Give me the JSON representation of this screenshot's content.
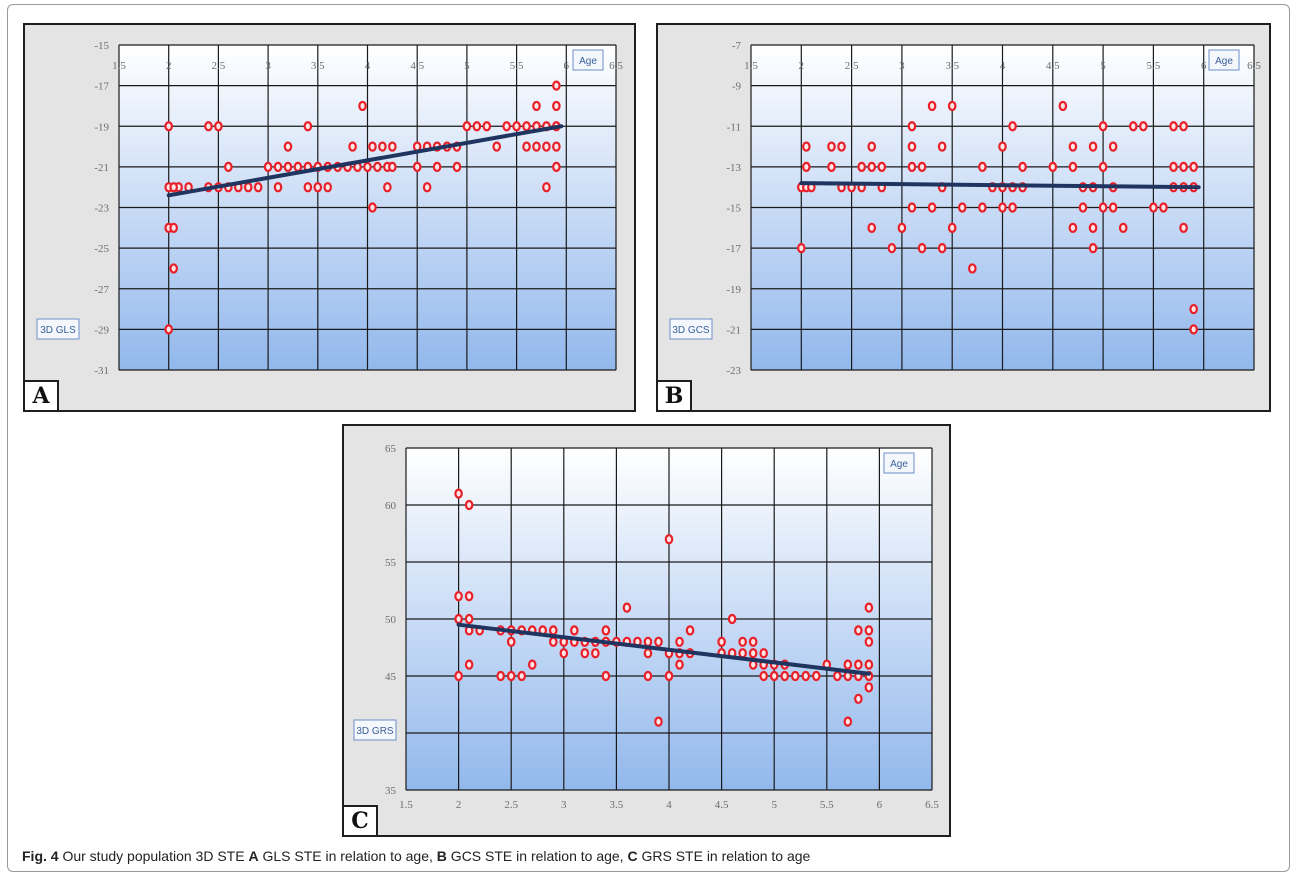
{
  "colors": {
    "plot_top": "#ffffff",
    "plot_bottom": "#92b8ec",
    "grid": "#1a1a1a",
    "point": "#e8202a",
    "trend": "#1f3560",
    "label_box_border": "#6c8fc8",
    "label_box_text": "#3a5f9a"
  },
  "caption": {
    "fig_label": "Fig. 4",
    "text_1": "Our study population 3D STE ",
    "label_a": "A",
    "text_2": " GLS STE in relation to age, ",
    "label_b": "B",
    "text_3": " GCS STE in relation to age, ",
    "label_c": "C",
    "text_4": " GRS STE in relation to age"
  },
  "chart_data": [
    {
      "id": "A",
      "type": "scatter",
      "panel_label": "A",
      "xlabel": "Age",
      "ylabel": "3D GLS",
      "xlim": [
        1.5,
        6.5
      ],
      "ylim": [
        -31,
        -15
      ],
      "x_ticks": [
        "1.5",
        "2",
        "2.5",
        "3",
        "3.5",
        "4",
        "4.5",
        "5",
        "5.5",
        "6",
        "6.5"
      ],
      "y_ticks": [
        "-15",
        "-17",
        "-19",
        "-21",
        "-23",
        "-25",
        "-27",
        "-29",
        "-31"
      ],
      "x_axis_position": "top",
      "grid": true,
      "trendline": {
        "x": [
          2.0,
          5.95
        ],
        "y": [
          -22.4,
          -19.0
        ]
      },
      "points": [
        [
          2,
          -19
        ],
        [
          2,
          -22
        ],
        [
          2,
          -24
        ],
        [
          2,
          -29
        ],
        [
          2.05,
          -26
        ],
        [
          2.05,
          -24
        ],
        [
          2.1,
          -22
        ],
        [
          2.05,
          -22
        ],
        [
          2.2,
          -22
        ],
        [
          2.4,
          -19
        ],
        [
          2.5,
          -19
        ],
        [
          2.4,
          -22
        ],
        [
          2.5,
          -22
        ],
        [
          2.6,
          -22
        ],
        [
          2.6,
          -21
        ],
        [
          2.7,
          -22
        ],
        [
          2.8,
          -22
        ],
        [
          2.9,
          -22
        ],
        [
          3.0,
          -21
        ],
        [
          3.1,
          -21
        ],
        [
          3.1,
          -22
        ],
        [
          3.2,
          -21
        ],
        [
          3.2,
          -20
        ],
        [
          3.3,
          -21
        ],
        [
          3.4,
          -21
        ],
        [
          3.4,
          -19
        ],
        [
          3.4,
          -22
        ],
        [
          3.5,
          -21
        ],
        [
          3.5,
          -22
        ],
        [
          3.6,
          -21
        ],
        [
          3.6,
          -22
        ],
        [
          3.7,
          -21
        ],
        [
          3.8,
          -21
        ],
        [
          3.85,
          -20
        ],
        [
          3.9,
          -21
        ],
        [
          3.95,
          -18
        ],
        [
          4.0,
          -21
        ],
        [
          4.05,
          -20
        ],
        [
          4.05,
          -23
        ],
        [
          4.1,
          -21
        ],
        [
          4.15,
          -20
        ],
        [
          4.2,
          -21
        ],
        [
          4.2,
          -22
        ],
        [
          4.25,
          -20
        ],
        [
          4.25,
          -21
        ],
        [
          4.5,
          -20
        ],
        [
          4.5,
          -21
        ],
        [
          4.6,
          -20
        ],
        [
          4.6,
          -22
        ],
        [
          4.7,
          -20
        ],
        [
          4.7,
          -21
        ],
        [
          4.8,
          -20
        ],
        [
          4.9,
          -20
        ],
        [
          4.9,
          -21
        ],
        [
          5.0,
          -19
        ],
        [
          5.1,
          -19
        ],
        [
          5.2,
          -19
        ],
        [
          5.3,
          -20
        ],
        [
          5.4,
          -19
        ],
        [
          5.5,
          -19
        ],
        [
          5.6,
          -19
        ],
        [
          5.6,
          -20
        ],
        [
          5.7,
          -19
        ],
        [
          5.7,
          -18
        ],
        [
          5.7,
          -20
        ],
        [
          5.8,
          -19
        ],
        [
          5.8,
          -20
        ],
        [
          5.8,
          -22
        ],
        [
          5.9,
          -19
        ],
        [
          5.9,
          -20
        ],
        [
          5.9,
          -21
        ],
        [
          5.9,
          -18
        ],
        [
          5.9,
          -17
        ]
      ]
    },
    {
      "id": "B",
      "type": "scatter",
      "panel_label": "B",
      "xlabel": "Age",
      "ylabel": "3D GCS",
      "xlim": [
        1.5,
        6.5
      ],
      "ylim": [
        -23,
        -7
      ],
      "x_ticks": [
        "1.5",
        "2",
        "2.5",
        "3",
        "3.5",
        "4",
        "4.5",
        "5",
        "5.5",
        "6",
        "6.5"
      ],
      "y_ticks": [
        "-7",
        "-9",
        "-11",
        "-13",
        "-15",
        "-17",
        "-19",
        "-21",
        "-23"
      ],
      "x_axis_position": "top",
      "grid": true,
      "trendline": {
        "x": [
          2.0,
          5.95
        ],
        "y": [
          -13.8,
          -14.0
        ]
      },
      "points": [
        [
          2,
          -14
        ],
        [
          2,
          -17
        ],
        [
          2.05,
          -12
        ],
        [
          2.05,
          -13
        ],
        [
          2.05,
          -14
        ],
        [
          2.1,
          -14
        ],
        [
          2.3,
          -12
        ],
        [
          2.3,
          -13
        ],
        [
          2.4,
          -12
        ],
        [
          2.4,
          -14
        ],
        [
          2.5,
          -14
        ],
        [
          2.6,
          -14
        ],
        [
          2.6,
          -13
        ],
        [
          2.7,
          -16
        ],
        [
          2.7,
          -13
        ],
        [
          2.7,
          -12
        ],
        [
          2.8,
          -13
        ],
        [
          2.8,
          -14
        ],
        [
          2.9,
          -17
        ],
        [
          3.0,
          -16
        ],
        [
          3.1,
          -11
        ],
        [
          3.1,
          -12
        ],
        [
          3.1,
          -13
        ],
        [
          3.1,
          -15
        ],
        [
          3.2,
          -13
        ],
        [
          3.2,
          -17
        ],
        [
          3.3,
          -10
        ],
        [
          3.3,
          -15
        ],
        [
          3.4,
          -12
        ],
        [
          3.4,
          -14
        ],
        [
          3.4,
          -17
        ],
        [
          3.5,
          -10
        ],
        [
          3.5,
          -16
        ],
        [
          3.6,
          -15
        ],
        [
          3.7,
          -18
        ],
        [
          3.8,
          -15
        ],
        [
          3.8,
          -13
        ],
        [
          3.9,
          -14
        ],
        [
          4.0,
          -12
        ],
        [
          4.0,
          -14
        ],
        [
          4.0,
          -15
        ],
        [
          4.1,
          -11
        ],
        [
          4.1,
          -14
        ],
        [
          4.1,
          -15
        ],
        [
          4.2,
          -13
        ],
        [
          4.2,
          -14
        ],
        [
          4.5,
          -13
        ],
        [
          4.6,
          -10
        ],
        [
          4.7,
          -12
        ],
        [
          4.7,
          -13
        ],
        [
          4.7,
          -16
        ],
        [
          4.8,
          -14
        ],
        [
          4.8,
          -15
        ],
        [
          4.9,
          -12
        ],
        [
          4.9,
          -14
        ],
        [
          4.9,
          -16
        ],
        [
          4.9,
          -17
        ],
        [
          5.0,
          -11
        ],
        [
          5.0,
          -13
        ],
        [
          5.0,
          -15
        ],
        [
          5.1,
          -12
        ],
        [
          5.1,
          -14
        ],
        [
          5.1,
          -15
        ],
        [
          5.2,
          -16
        ],
        [
          5.3,
          -11
        ],
        [
          5.4,
          -11
        ],
        [
          5.5,
          -15
        ],
        [
          5.6,
          -15
        ],
        [
          5.7,
          -11
        ],
        [
          5.7,
          -13
        ],
        [
          5.7,
          -14
        ],
        [
          5.8,
          -11
        ],
        [
          5.8,
          -13
        ],
        [
          5.8,
          -14
        ],
        [
          5.8,
          -16
        ],
        [
          5.9,
          -13
        ],
        [
          5.9,
          -14
        ],
        [
          5.9,
          -20
        ],
        [
          5.9,
          -21
        ]
      ]
    },
    {
      "id": "C",
      "type": "scatter",
      "panel_label": "C",
      "xlabel": "Age",
      "ylabel": "3D GRS",
      "xlim": [
        1.5,
        6.5
      ],
      "ylim": [
        35,
        65
      ],
      "x_ticks": [
        "1.5",
        "2",
        "2.5",
        "3",
        "3.5",
        "4",
        "4.5",
        "5",
        "5.5",
        "6",
        "6.5"
      ],
      "y_ticks": [
        "65",
        "60",
        "55",
        "50",
        "45",
        "40",
        "35"
      ],
      "x_axis_position": "bottom",
      "grid": true,
      "trendline": {
        "x": [
          2.0,
          5.9
        ],
        "y": [
          49.5,
          45.2
        ]
      },
      "points": [
        [
          2,
          61
        ],
        [
          2,
          52
        ],
        [
          2,
          50
        ],
        [
          2,
          45
        ],
        [
          2.1,
          60
        ],
        [
          2.1,
          52
        ],
        [
          2.1,
          50
        ],
        [
          2.1,
          49
        ],
        [
          2.1,
          46
        ],
        [
          2.2,
          49
        ],
        [
          2.4,
          49
        ],
        [
          2.4,
          45
        ],
        [
          2.5,
          49
        ],
        [
          2.5,
          48
        ],
        [
          2.5,
          45
        ],
        [
          2.6,
          49
        ],
        [
          2.6,
          45
        ],
        [
          2.7,
          49
        ],
        [
          2.7,
          46
        ],
        [
          2.8,
          49
        ],
        [
          2.9,
          49
        ],
        [
          2.9,
          48
        ],
        [
          3.0,
          48
        ],
        [
          3.0,
          47
        ],
        [
          3.1,
          49
        ],
        [
          3.1,
          48
        ],
        [
          3.2,
          48
        ],
        [
          3.2,
          47
        ],
        [
          3.3,
          48
        ],
        [
          3.3,
          47
        ],
        [
          3.4,
          49
        ],
        [
          3.4,
          48
        ],
        [
          3.4,
          45
        ],
        [
          3.5,
          48
        ],
        [
          3.6,
          51
        ],
        [
          3.6,
          48
        ],
        [
          3.7,
          48
        ],
        [
          3.8,
          48
        ],
        [
          3.8,
          47
        ],
        [
          3.8,
          45
        ],
        [
          3.9,
          48
        ],
        [
          3.9,
          41
        ],
        [
          4.0,
          57
        ],
        [
          4.0,
          47
        ],
        [
          4.0,
          45
        ],
        [
          4.1,
          48
        ],
        [
          4.1,
          47
        ],
        [
          4.1,
          46
        ],
        [
          4.2,
          49
        ],
        [
          4.2,
          47
        ],
        [
          4.5,
          48
        ],
        [
          4.5,
          47
        ],
        [
          4.6,
          50
        ],
        [
          4.6,
          47
        ],
        [
          4.7,
          48
        ],
        [
          4.7,
          47
        ],
        [
          4.8,
          48
        ],
        [
          4.8,
          47
        ],
        [
          4.8,
          46
        ],
        [
          4.9,
          47
        ],
        [
          4.9,
          46
        ],
        [
          4.9,
          45
        ],
        [
          5.0,
          46
        ],
        [
          5.0,
          45
        ],
        [
          5.1,
          46
        ],
        [
          5.1,
          45
        ],
        [
          5.2,
          45
        ],
        [
          5.3,
          45
        ],
        [
          5.4,
          45
        ],
        [
          5.5,
          46
        ],
        [
          5.6,
          45
        ],
        [
          5.7,
          46
        ],
        [
          5.7,
          45
        ],
        [
          5.7,
          41
        ],
        [
          5.8,
          49
        ],
        [
          5.8,
          46
        ],
        [
          5.8,
          45
        ],
        [
          5.8,
          43
        ],
        [
          5.9,
          51
        ],
        [
          5.9,
          49
        ],
        [
          5.9,
          48
        ],
        [
          5.9,
          46
        ],
        [
          5.9,
          45
        ],
        [
          5.9,
          44
        ]
      ]
    }
  ]
}
